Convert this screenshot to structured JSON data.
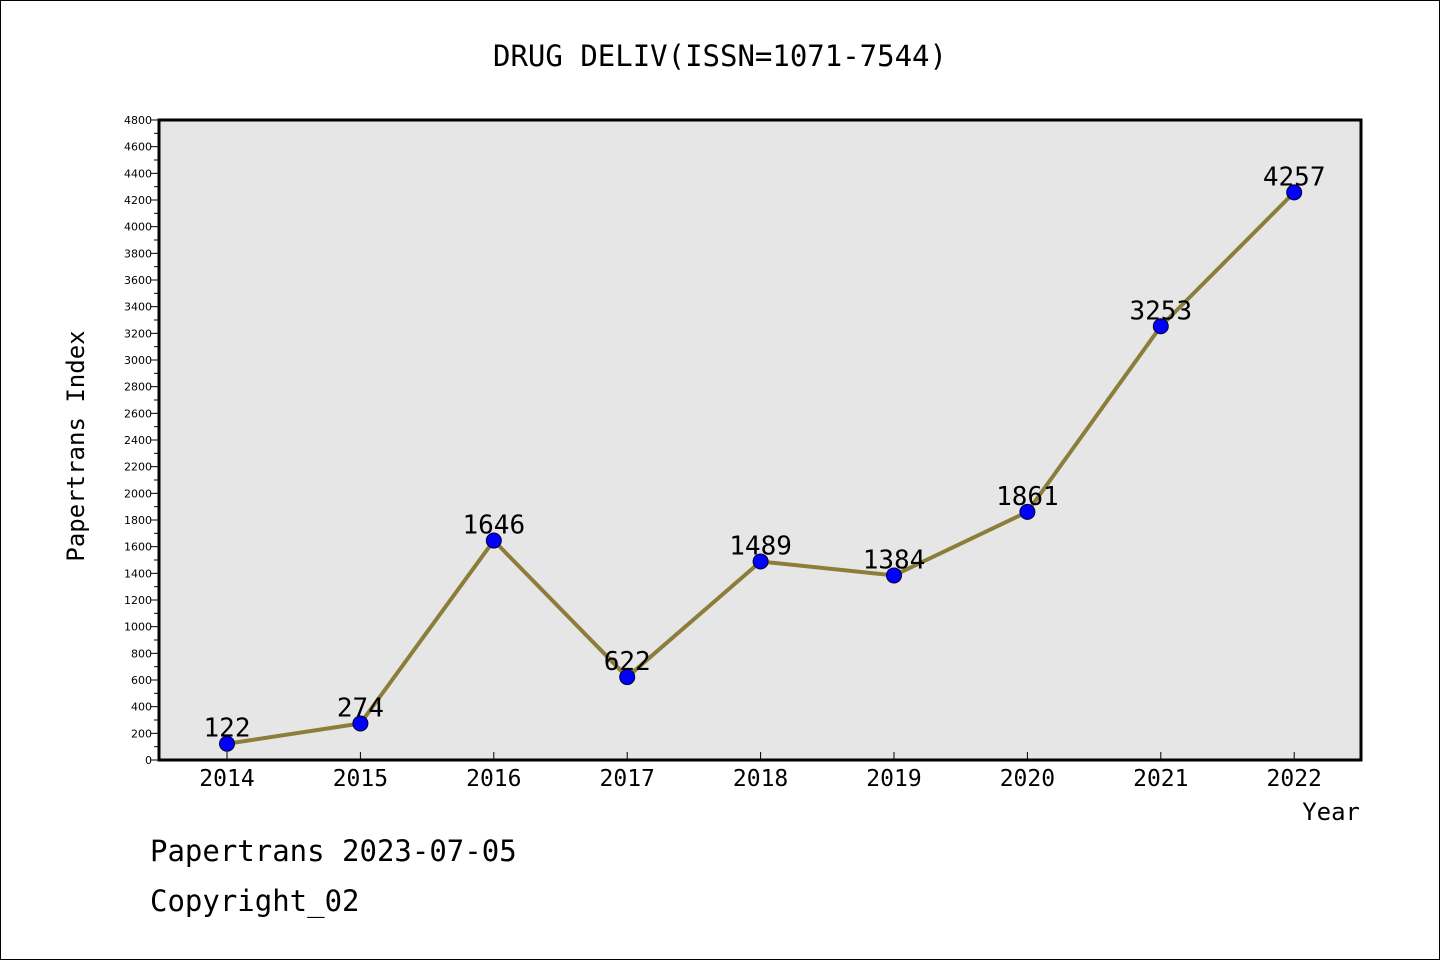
{
  "chart_data": {
    "type": "line",
    "title": "DRUG DELIV(ISSN=1071-7544)",
    "xlabel": "Year",
    "ylabel": "Papertrans Index",
    "categories": [
      "2014",
      "2015",
      "2016",
      "2017",
      "2018",
      "2019",
      "2020",
      "2021",
      "2022"
    ],
    "series": [
      {
        "values": [
          122,
          274,
          1646,
          622,
          1489,
          1384,
          1861,
          3253,
          4257
        ],
        "data_labels": [
          "122",
          "274",
          "1646",
          "622",
          "1489",
          "1384",
          "1861",
          "3253",
          "4257"
        ],
        "line_color": "#8c7e3a",
        "marker_color": "#0000ff"
      }
    ],
    "ylim": [
      0,
      4800
    ],
    "yticks": [
      "0",
      "200",
      "400",
      "600",
      "800",
      "1000",
      "1200",
      "1400",
      "1600",
      "1800",
      "2000",
      "2200",
      "2400",
      "2600",
      "2800",
      "3000",
      "3200",
      "3400",
      "3600",
      "3800",
      "4000",
      "4200",
      "4400",
      "4600",
      "4800"
    ],
    "grid": false,
    "legend": "none",
    "plot_background": "#e6e6e6"
  },
  "footer": {
    "date_line": "Papertrans 2023-07-05",
    "copyright_line": "Copyright_02"
  }
}
